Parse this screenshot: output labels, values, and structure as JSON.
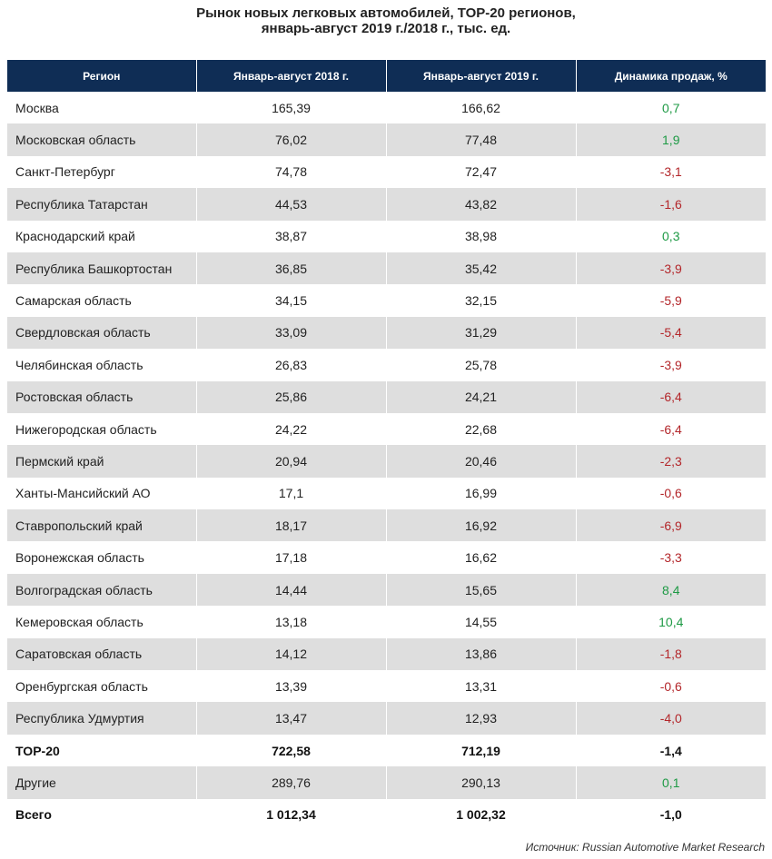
{
  "chart_data": {
    "type": "table",
    "title_lines": [
      "Рынок новых легковых автомобилей, ТОР-20 регионов,",
      "январь-август 2019 г./2018 г., тыс. ед."
    ],
    "columns": [
      "Регион",
      "Январь-август 2018 г.",
      "Январь-август 2019 г.",
      "Динамика продаж, %"
    ],
    "rows": [
      {
        "region": "Москва",
        "y2018": "165,39",
        "y2019": "166,62",
        "dynamics": "0,7"
      },
      {
        "region": "Московская область",
        "y2018": "76,02",
        "y2019": "77,48",
        "dynamics": "1,9"
      },
      {
        "region": "Санкт-Петербург",
        "y2018": "74,78",
        "y2019": "72,47",
        "dynamics": "-3,1"
      },
      {
        "region": "Республика Татарстан",
        "y2018": "44,53",
        "y2019": "43,82",
        "dynamics": "-1,6"
      },
      {
        "region": "Краснодарский край",
        "y2018": "38,87",
        "y2019": "38,98",
        "dynamics": "0,3"
      },
      {
        "region": "Республика Башкортостан",
        "y2018": "36,85",
        "y2019": "35,42",
        "dynamics": "-3,9"
      },
      {
        "region": "Самарская область",
        "y2018": "34,15",
        "y2019": "32,15",
        "dynamics": "-5,9"
      },
      {
        "region": "Свердловская область",
        "y2018": "33,09",
        "y2019": "31,29",
        "dynamics": "-5,4"
      },
      {
        "region": "Челябинская область",
        "y2018": "26,83",
        "y2019": "25,78",
        "dynamics": "-3,9"
      },
      {
        "region": "Ростовская область",
        "y2018": "25,86",
        "y2019": "24,21",
        "dynamics": "-6,4"
      },
      {
        "region": "Нижегородская область",
        "y2018": "24,22",
        "y2019": "22,68",
        "dynamics": "-6,4"
      },
      {
        "region": "Пермский край",
        "y2018": "20,94",
        "y2019": "20,46",
        "dynamics": "-2,3"
      },
      {
        "region": "Ханты-Мансийский АО",
        "y2018": "17,1",
        "y2019": "16,99",
        "dynamics": "-0,6"
      },
      {
        "region": "Ставропольский край",
        "y2018": "18,17",
        "y2019": "16,92",
        "dynamics": "-6,9"
      },
      {
        "region": "Воронежская область",
        "y2018": "17,18",
        "y2019": "16,62",
        "dynamics": "-3,3"
      },
      {
        "region": "Волгоградская область",
        "y2018": "14,44",
        "y2019": "15,65",
        "dynamics": "8,4"
      },
      {
        "region": "Кемеровская область",
        "y2018": "13,18",
        "y2019": "14,55",
        "dynamics": "10,4"
      },
      {
        "region": "Саратовская область",
        "y2018": "14,12",
        "y2019": "13,86",
        "dynamics": "-1,8"
      },
      {
        "region": "Оренбургская область",
        "y2018": "13,39",
        "y2019": "13,31",
        "dynamics": "-0,6"
      },
      {
        "region": "Республика Удмуртия",
        "y2018": "13,47",
        "y2019": "12,93",
        "dynamics": "-4,0"
      },
      {
        "region": "TOP-20",
        "y2018": "722,58",
        "y2019": "712,19",
        "dynamics": "-1,4",
        "bold": true
      },
      {
        "region": "Другие",
        "y2018": "289,76",
        "y2019": "290,13",
        "dynamics": "0,1"
      },
      {
        "region": "Всего",
        "y2018": "1 012,34",
        "y2019": "1 002,32",
        "dynamics": "-1,0",
        "bold": true
      }
    ],
    "source": "Источник: Russian Automotive Market Research",
    "colors": {
      "header_bg": "#0f2d55",
      "stripe": "#dedede",
      "positive": "#1e9a45",
      "negative": "#b3262a"
    }
  }
}
